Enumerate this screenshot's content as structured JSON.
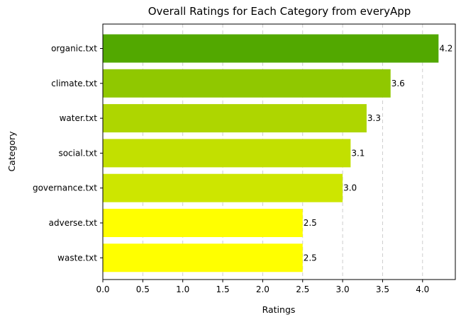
{
  "chart_data": {
    "type": "bar",
    "orientation": "horizontal",
    "title": "Overall Ratings for Each Category from everyApp",
    "xlabel": "Ratings",
    "ylabel": "Category",
    "categories": [
      "organic.txt",
      "climate.txt",
      "water.txt",
      "social.txt",
      "governance.txt",
      "adverse.txt",
      "waste.txt"
    ],
    "values": [
      4.2,
      3.6,
      3.3,
      3.1,
      3.0,
      2.5,
      2.5
    ],
    "value_labels": [
      "4.2",
      "3.6",
      "3.3",
      "3.1",
      "3.0",
      "2.5",
      "2.5"
    ],
    "colors": [
      "#52a800",
      "#90c800",
      "#aed600",
      "#c2e000",
      "#cde600",
      "#ffff00",
      "#ffff00"
    ],
    "xlim": [
      0,
      4.41
    ],
    "xticks": [
      0,
      0.5,
      1,
      1.5,
      2,
      2.5,
      3,
      3.5,
      4
    ],
    "xtick_labels": [
      "0.0",
      "0.5",
      "1.0",
      "1.5",
      "2.0",
      "2.5",
      "3.0",
      "3.5",
      "4.0"
    ],
    "grid": "x-dashed",
    "legend": "none"
  }
}
